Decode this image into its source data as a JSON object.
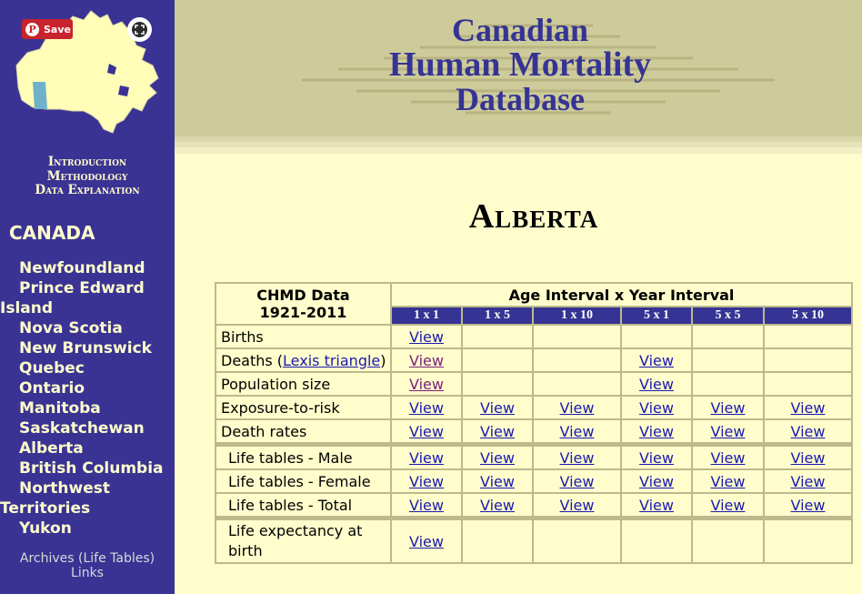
{
  "sidebar": {
    "pin_save_label": "Save",
    "nav": [
      "Introduction",
      "Methodology",
      "Data Explanation"
    ],
    "canada_label": "CANADA",
    "provinces": [
      "Newfoundland",
      "Prince Edward Island",
      "Nova Scotia",
      "New Brunswick",
      "Quebec",
      "Ontario",
      "Manitoba",
      "Saskatchewan",
      "Alberta",
      "British Columbia",
      "Northwest Territories",
      "Yukon"
    ],
    "footer_links": [
      "Archives (Life Tables)",
      "Links"
    ]
  },
  "header": {
    "logo_lines": [
      "Canadian",
      "Human Mortality",
      "Database"
    ]
  },
  "page_title": "Alberta",
  "table": {
    "title_line1": "CHMD Data",
    "title_line2": "1921-2011",
    "interval_header": "Age Interval x Year Interval",
    "columns": [
      "1 x 1",
      "1 x 5",
      "1 x 10",
      "5 x 1",
      "5 x 5",
      "5 x 10"
    ],
    "link_text": "View",
    "rows": [
      {
        "label": "Births",
        "cells": [
          true,
          false,
          false,
          false,
          false,
          false
        ]
      },
      {
        "label_prefix": "Deaths (",
        "label_link": "Lexis triangle",
        "label_suffix": ")",
        "cells": [
          true,
          false,
          false,
          true,
          false,
          false
        ]
      },
      {
        "label": "Population size",
        "cells": [
          true,
          false,
          false,
          true,
          false,
          false
        ]
      },
      {
        "label": "Exposure-to-risk",
        "cells": [
          true,
          true,
          true,
          true,
          true,
          true
        ]
      },
      {
        "label": "Death rates",
        "cells": [
          true,
          true,
          true,
          true,
          true,
          true
        ]
      },
      {
        "label": "Life tables - Male",
        "cells": [
          true,
          true,
          true,
          true,
          true,
          true
        ]
      },
      {
        "label": "Life tables - Female",
        "cells": [
          true,
          true,
          true,
          true,
          true,
          true
        ]
      },
      {
        "label": "Life tables - Total",
        "cells": [
          true,
          true,
          true,
          true,
          true,
          true
        ]
      },
      {
        "label": "Life expectancy at birth",
        "cells": [
          true,
          false,
          false,
          false,
          false,
          false
        ]
      }
    ]
  },
  "colors": {
    "sidebar_bg": "#3a3394",
    "page_bg": "#fffdcc",
    "header_bg": "#cecb9a",
    "accent": "#353494",
    "link": "#1a1ab0",
    "visited": "#7a1f7a"
  }
}
